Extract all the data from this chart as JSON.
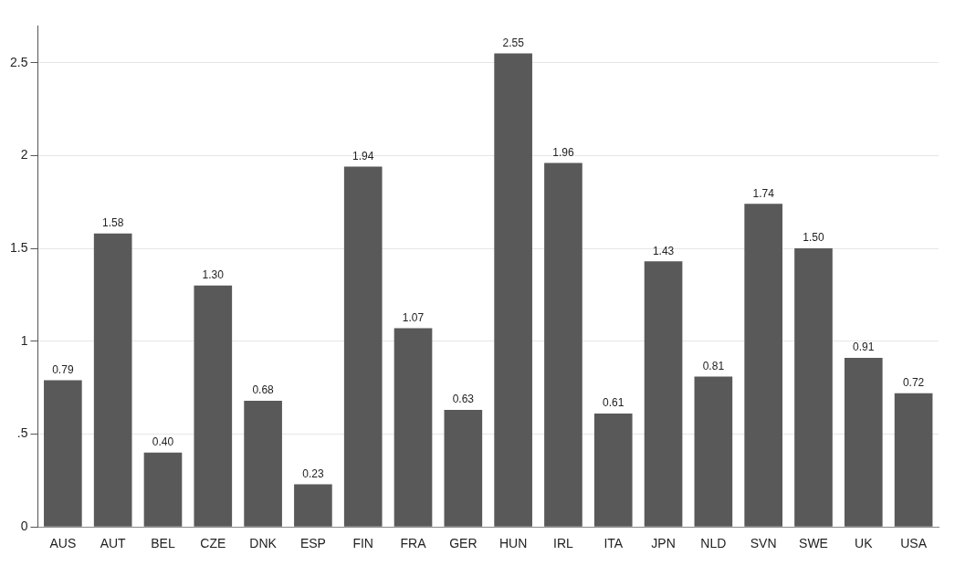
{
  "chart_data": {
    "type": "bar",
    "categories": [
      "AUS",
      "AUT",
      "BEL",
      "CZE",
      "DNK",
      "ESP",
      "FIN",
      "FRA",
      "GER",
      "HUN",
      "IRL",
      "ITA",
      "JPN",
      "NLD",
      "SVN",
      "SWE",
      "UK",
      "USA"
    ],
    "values": [
      0.79,
      1.58,
      0.4,
      1.3,
      0.68,
      0.23,
      1.94,
      1.07,
      0.63,
      2.55,
      1.96,
      0.61,
      1.43,
      0.81,
      1.74,
      1.5,
      0.91,
      0.72
    ],
    "value_labels": [
      "0.79",
      "1.58",
      "0.40",
      "1.30",
      "0.68",
      "0.23",
      "1.94",
      "1.07",
      "0.63",
      "2.55",
      "1.96",
      "0.61",
      "1.43",
      "0.81",
      "1.74",
      "1.50",
      "0.91",
      "0.72"
    ],
    "color": "#595959",
    "ylim": [
      0,
      2.7
    ],
    "yticks": [
      0,
      {
        "value": 0.5,
        "label": ".5"
      },
      1,
      1.5,
      2,
      2.5
    ],
    "grid": "y",
    "legend": false
  }
}
